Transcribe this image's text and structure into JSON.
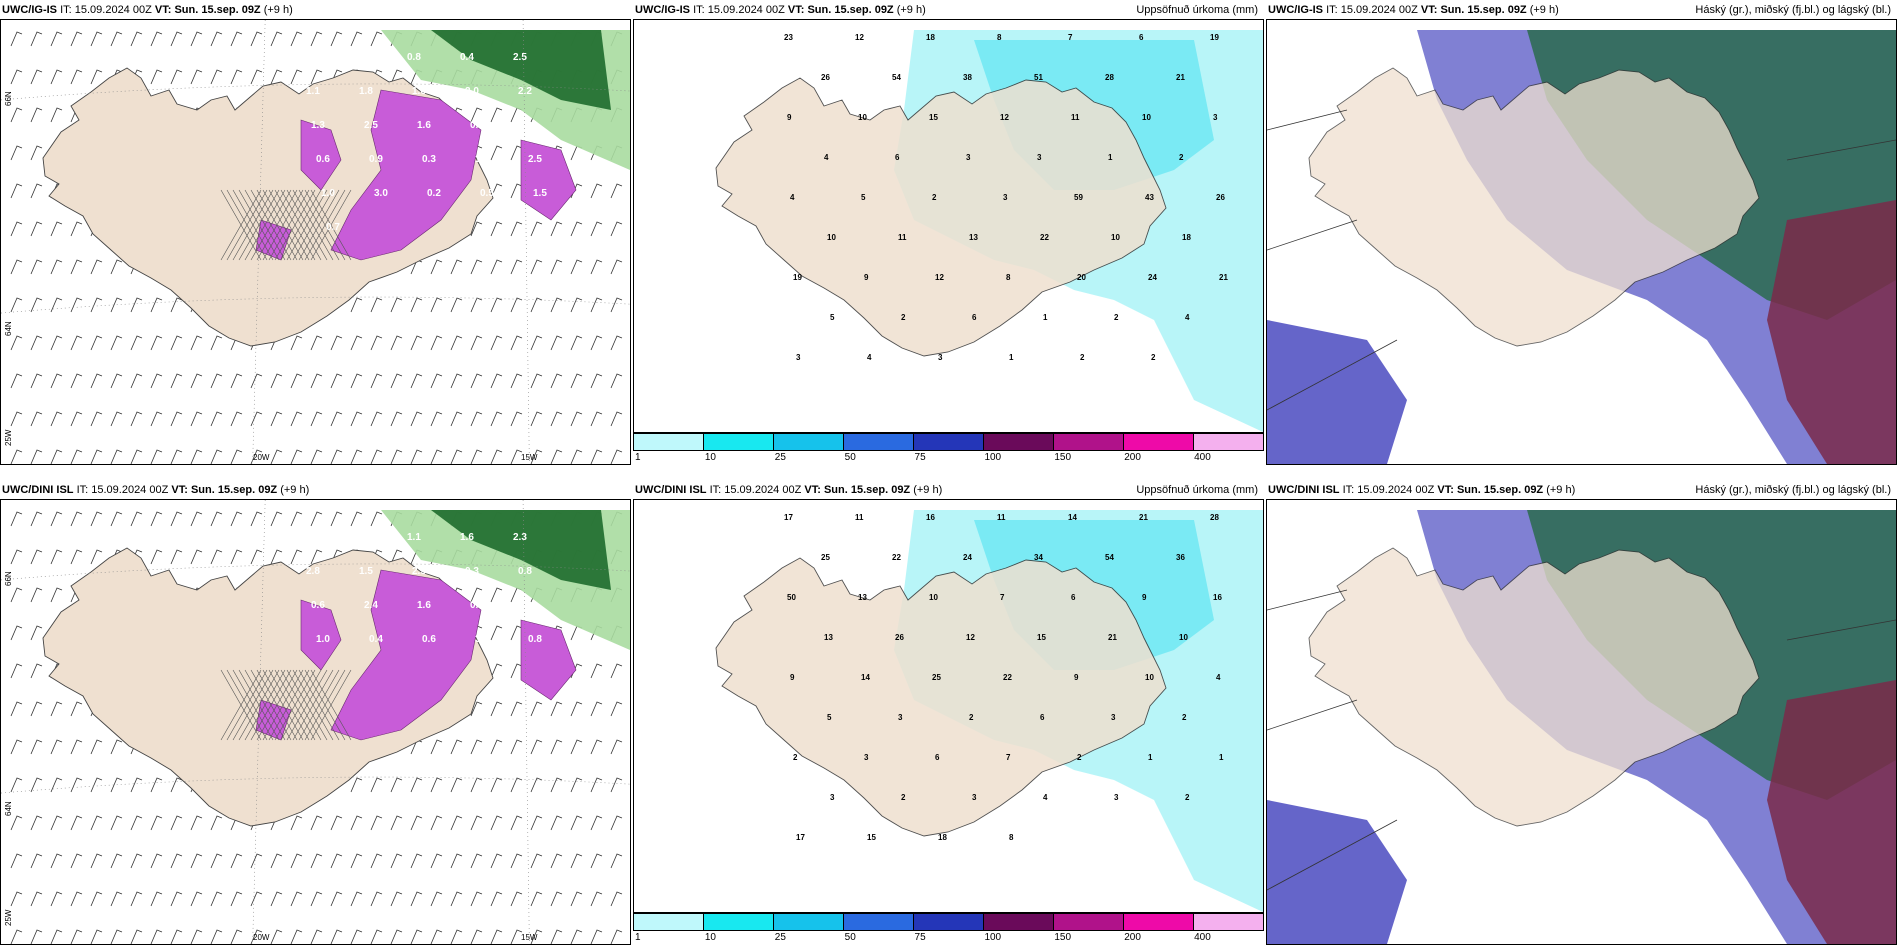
{
  "rows": [
    {
      "model": "UWC/IG-IS",
      "it_label": "IT:",
      "it_value": "15.09.2024 00Z",
      "vt_label": "VT:",
      "vt_value": "Sun. 15.sep. 09Z",
      "lead": "(+9 h)",
      "precip_title": "Uppsöfnuð úrkoma (mm)",
      "cloud_title": "Háský (gr.), miðský (fj.bl.) og lágský (bl.)",
      "precip_values": [
        "23",
        "12",
        "18",
        "8",
        "7",
        "6",
        "19",
        "26",
        "54",
        "38",
        "51",
        "28",
        "21",
        "9",
        "10",
        "15",
        "12",
        "11",
        "10",
        "3",
        "4",
        "6",
        "3",
        "3",
        "1",
        "2",
        "4",
        "5",
        "2",
        "3",
        "59",
        "43",
        "26",
        "10",
        "11",
        "13",
        "22",
        "10",
        "18",
        "19",
        "9",
        "12",
        "8",
        "20",
        "24",
        "21",
        "5",
        "2",
        "6",
        "1",
        "2",
        "4",
        "3",
        "4",
        "3",
        "1",
        "2",
        "2"
      ],
      "snow_values": [
        "0.7",
        "0.9",
        "0.8",
        "0.4",
        "2.5",
        "1.1",
        "1.8",
        "1.6",
        "2.0",
        "2.2",
        "1.3",
        "2.5",
        "1.6",
        "0.8",
        "2.4",
        "0.6",
        "0.9",
        "0.3",
        "1.3",
        "2.5",
        "1.0",
        "3.0",
        "0.2",
        "0.5",
        "1.5",
        "0.7"
      ]
    },
    {
      "model": "UWC/DINI ISL",
      "it_label": "IT:",
      "it_value": "15.09.2024 00Z",
      "vt_label": "VT:",
      "vt_value": "Sun. 15.sep. 09Z",
      "lead": "(+9 h)",
      "precip_title": "Uppsöfnuð úrkoma (mm)",
      "cloud_title": "Háský (gr.), miðský (fj.bl.) og lágský (bl.)",
      "precip_values": [
        "17",
        "11",
        "16",
        "11",
        "14",
        "21",
        "28",
        "25",
        "22",
        "24",
        "34",
        "54",
        "36",
        "50",
        "13",
        "10",
        "7",
        "6",
        "9",
        "16",
        "13",
        "26",
        "12",
        "15",
        "21",
        "10",
        "9",
        "14",
        "25",
        "22",
        "9",
        "10",
        "4",
        "5",
        "3",
        "2",
        "6",
        "3",
        "2",
        "2",
        "3",
        "6",
        "7",
        "2",
        "1",
        "1",
        "3",
        "2",
        "3",
        "4",
        "3",
        "2",
        "17",
        "15",
        "18",
        "8"
      ],
      "snow_values": [
        "0.6",
        "1.0",
        "1.1",
        "1.6",
        "2.3",
        "2.8",
        "1.5",
        "2.5",
        "0.3",
        "0.8",
        "0.6",
        "2.4",
        "1.6",
        "0.5",
        "0.8",
        "1.0",
        "0.4",
        "0.6",
        "3.3",
        "0.8"
      ]
    }
  ],
  "axis_labels": {
    "lat_66": "66N",
    "lat_64": "64N",
    "lon_20": "20W",
    "lon_15": "15W",
    "lon_25": "25W"
  },
  "colorbar": {
    "ticks": [
      "1",
      "10",
      "25",
      "50",
      "75",
      "100",
      "150",
      "200",
      "400"
    ],
    "colors": [
      "#bff8fb",
      "#18e8f0",
      "#16c2eb",
      "#2a6ae0",
      "#2436b8",
      "#6a0a5a",
      "#b0128a",
      "#ee0aa8",
      "#f4b0ee"
    ]
  },
  "colors": {
    "land": "#efe0d0",
    "precip_light": "#b8f5f8",
    "precip_mid": "#6fe8f3",
    "snow_purple": "#c85cd8",
    "green_dark": "#1e6b2c",
    "green_light": "#a8dca0",
    "cloud_high": "#2f6b55",
    "cloud_mid": "#7a2a4a",
    "cloud_low": "#4a4ac0"
  }
}
